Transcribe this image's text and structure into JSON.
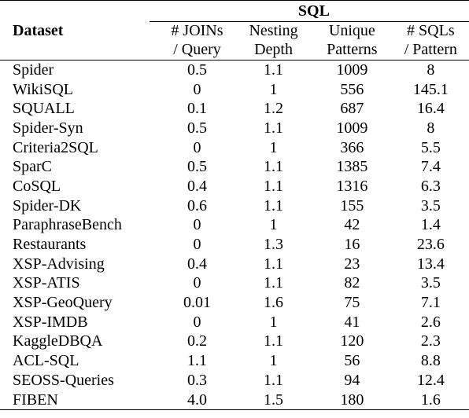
{
  "table": {
    "group_header": "SQL",
    "dataset_header": "Dataset",
    "columns": [
      {
        "line1": "# JOINs",
        "line2": "/ Query"
      },
      {
        "line1": "Nesting",
        "line2": "Depth"
      },
      {
        "line1": "Unique",
        "line2": "Patterns"
      },
      {
        "line1": "# SQLs",
        "line2": "/ Pattern"
      }
    ],
    "rows": [
      {
        "name": "Spider",
        "joins": "0.5",
        "nesting": "1.1",
        "patterns": "1009",
        "sqls": "8"
      },
      {
        "name": "WikiSQL",
        "joins": "0",
        "nesting": "1",
        "patterns": "556",
        "sqls": "145.1"
      },
      {
        "name": "SQUALL",
        "joins": "0.1",
        "nesting": "1.2",
        "patterns": "687",
        "sqls": "16.4"
      },
      {
        "name": "Spider-Syn",
        "joins": "0.5",
        "nesting": "1.1",
        "patterns": "1009",
        "sqls": "8"
      },
      {
        "name": "Criteria2SQL",
        "joins": "0",
        "nesting": "1",
        "patterns": "366",
        "sqls": "5.5"
      },
      {
        "name": "SparC",
        "joins": "0.5",
        "nesting": "1.1",
        "patterns": "1385",
        "sqls": "7.4"
      },
      {
        "name": "CoSQL",
        "joins": "0.4",
        "nesting": "1.1",
        "patterns": "1316",
        "sqls": "6.3"
      },
      {
        "name": "Spider-DK",
        "joins": "0.6",
        "nesting": "1.1",
        "patterns": "155",
        "sqls": "3.5"
      },
      {
        "name": "ParaphraseBench",
        "joins": "0",
        "nesting": "1",
        "patterns": "42",
        "sqls": "1.4"
      },
      {
        "name": "Restaurants",
        "joins": "0",
        "nesting": "1.3",
        "patterns": "16",
        "sqls": "23.6"
      },
      {
        "name": "XSP-Advising",
        "joins": "0.4",
        "nesting": "1.1",
        "patterns": "23",
        "sqls": "13.4"
      },
      {
        "name": "XSP-ATIS",
        "joins": "0",
        "nesting": "1.1",
        "patterns": "82",
        "sqls": "3.5"
      },
      {
        "name": "XSP-GeoQuery",
        "joins": "0.01",
        "nesting": "1.6",
        "patterns": "75",
        "sqls": "7.1"
      },
      {
        "name": "XSP-IMDB",
        "joins": "0",
        "nesting": "1",
        "patterns": "41",
        "sqls": "2.6"
      },
      {
        "name": "KaggleDBQA",
        "joins": "0.2",
        "nesting": "1.1",
        "patterns": "120",
        "sqls": "2.3"
      },
      {
        "name": "ACL-SQL",
        "joins": "1.1",
        "nesting": "1",
        "patterns": "56",
        "sqls": "8.8"
      },
      {
        "name": "SEOSS-Queries",
        "joins": "0.3",
        "nesting": "1.1",
        "patterns": "94",
        "sqls": "12.4"
      },
      {
        "name": "FIBEN",
        "joins": "4.0",
        "nesting": "1.5",
        "patterns": "180",
        "sqls": "1.6"
      }
    ]
  }
}
